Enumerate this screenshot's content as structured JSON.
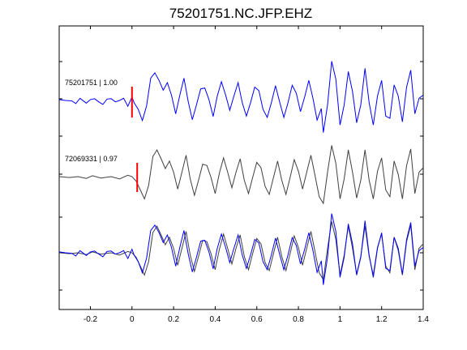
{
  "chart_data": {
    "type": "line",
    "title": "75201751.NC.JFP.EHZ",
    "xlabel": "",
    "ylabel": "",
    "xlim": [
      -0.35,
      1.4
    ],
    "x_ticks": [
      -0.2,
      0,
      0.2,
      0.4,
      0.6,
      0.8,
      1,
      1.2,
      1.4
    ],
    "x_tick_labels": [
      "-0.2",
      "0",
      "0.2",
      "0.4",
      "0.6",
      "0.8",
      "1",
      "1.2",
      "1.4"
    ],
    "grid": false,
    "pick_time": 0,
    "traces": [
      {
        "label": "75201751 | 1.00",
        "color": "#0000ff",
        "pick_x": 0.0,
        "pick_color": "#ff0000",
        "points": [
          [
            -0.35,
            0.02
          ],
          [
            -0.32,
            0.0
          ],
          [
            -0.29,
            -0.01
          ],
          [
            -0.27,
            -0.07
          ],
          [
            -0.25,
            0.05
          ],
          [
            -0.22,
            -0.06
          ],
          [
            -0.2,
            0.02
          ],
          [
            -0.18,
            0.04
          ],
          [
            -0.16,
            -0.03
          ],
          [
            -0.14,
            -0.09
          ],
          [
            -0.12,
            0.03
          ],
          [
            -0.1,
            0.04
          ],
          [
            -0.08,
            -0.03
          ],
          [
            -0.06,
            0.0
          ],
          [
            -0.04,
            0.05
          ],
          [
            -0.02,
            -0.13
          ],
          [
            0.0,
            0.08
          ],
          [
            0.01,
            -0.05
          ],
          [
            0.03,
            -0.2
          ],
          [
            0.05,
            -0.45
          ],
          [
            0.07,
            -0.12
          ],
          [
            0.09,
            0.5
          ],
          [
            0.11,
            0.62
          ],
          [
            0.13,
            0.45
          ],
          [
            0.15,
            0.23
          ],
          [
            0.17,
            0.4
          ],
          [
            0.19,
            0.12
          ],
          [
            0.21,
            -0.3
          ],
          [
            0.23,
            0.12
          ],
          [
            0.25,
            0.5
          ],
          [
            0.27,
            -0.02
          ],
          [
            0.29,
            -0.43
          ],
          [
            0.31,
            -0.1
          ],
          [
            0.33,
            0.26
          ],
          [
            0.35,
            0.28
          ],
          [
            0.37,
            0.02
          ],
          [
            0.39,
            -0.36
          ],
          [
            0.41,
            0.1
          ],
          [
            0.43,
            0.42
          ],
          [
            0.45,
            0.12
          ],
          [
            0.47,
            -0.22
          ],
          [
            0.49,
            0.1
          ],
          [
            0.51,
            0.4
          ],
          [
            0.53,
            -0.05
          ],
          [
            0.55,
            -0.35
          ],
          [
            0.57,
            -0.05
          ],
          [
            0.59,
            0.3
          ],
          [
            0.61,
            0.22
          ],
          [
            0.63,
            -0.2
          ],
          [
            0.65,
            -0.38
          ],
          [
            0.67,
            -0.05
          ],
          [
            0.69,
            0.33
          ],
          [
            0.71,
            -0.04
          ],
          [
            0.73,
            -0.38
          ],
          [
            0.75,
            -0.05
          ],
          [
            0.77,
            0.34
          ],
          [
            0.79,
            0.16
          ],
          [
            0.81,
            -0.25
          ],
          [
            0.83,
            0.08
          ],
          [
            0.85,
            0.45
          ],
          [
            0.87,
            0.05
          ],
          [
            0.89,
            -0.44
          ],
          [
            0.91,
            -0.18
          ],
          [
            0.92,
            -0.72
          ],
          [
            0.94,
            -0.1
          ],
          [
            0.96,
            0.88
          ],
          [
            0.98,
            0.48
          ],
          [
            1.0,
            -0.55
          ],
          [
            1.02,
            -0.1
          ],
          [
            1.04,
            0.65
          ],
          [
            1.06,
            0.2
          ],
          [
            1.08,
            -0.5
          ],
          [
            1.1,
            -0.1
          ],
          [
            1.12,
            0.72
          ],
          [
            1.14,
            -0.05
          ],
          [
            1.16,
            -0.55
          ],
          [
            1.18,
            0.1
          ],
          [
            1.2,
            0.45
          ],
          [
            1.22,
            -0.35
          ],
          [
            1.24,
            -0.4
          ],
          [
            1.26,
            0.35
          ],
          [
            1.28,
            0.1
          ],
          [
            1.3,
            -0.48
          ],
          [
            1.32,
            0.3
          ],
          [
            1.34,
            0.68
          ],
          [
            1.36,
            -0.3
          ],
          [
            1.38,
            0.05
          ],
          [
            1.4,
            0.12
          ]
        ]
      },
      {
        "label": "72069331 | 0.97",
        "color": "#404040",
        "pick_x": 0.025,
        "pick_color": "#ff0000",
        "points": [
          [
            -0.35,
            0.0
          ],
          [
            -0.3,
            -0.02
          ],
          [
            -0.26,
            0.0
          ],
          [
            -0.22,
            -0.04
          ],
          [
            -0.19,
            0.02
          ],
          [
            -0.15,
            -0.03
          ],
          [
            -0.1,
            0.0
          ],
          [
            -0.06,
            -0.05
          ],
          [
            -0.02,
            0.03
          ],
          [
            0.0,
            0.0
          ],
          [
            0.02,
            -0.1
          ],
          [
            0.04,
            -0.3
          ],
          [
            0.06,
            -0.5
          ],
          [
            0.08,
            -0.2
          ],
          [
            0.1,
            0.45
          ],
          [
            0.12,
            0.6
          ],
          [
            0.14,
            0.4
          ],
          [
            0.16,
            0.18
          ],
          [
            0.18,
            0.35
          ],
          [
            0.2,
            0.1
          ],
          [
            0.22,
            -0.28
          ],
          [
            0.24,
            0.1
          ],
          [
            0.26,
            0.48
          ],
          [
            0.28,
            -0.05
          ],
          [
            0.3,
            -0.42
          ],
          [
            0.32,
            -0.08
          ],
          [
            0.34,
            0.28
          ],
          [
            0.36,
            0.25
          ],
          [
            0.38,
            -0.02
          ],
          [
            0.4,
            -0.38
          ],
          [
            0.42,
            0.08
          ],
          [
            0.44,
            0.42
          ],
          [
            0.46,
            0.1
          ],
          [
            0.48,
            -0.25
          ],
          [
            0.5,
            0.1
          ],
          [
            0.52,
            0.4
          ],
          [
            0.54,
            -0.08
          ],
          [
            0.56,
            -0.38
          ],
          [
            0.58,
            -0.02
          ],
          [
            0.6,
            0.32
          ],
          [
            0.62,
            0.2
          ],
          [
            0.64,
            -0.22
          ],
          [
            0.66,
            -0.4
          ],
          [
            0.68,
            -0.02
          ],
          [
            0.7,
            0.35
          ],
          [
            0.72,
            -0.08
          ],
          [
            0.74,
            -0.4
          ],
          [
            0.76,
            -0.02
          ],
          [
            0.78,
            0.38
          ],
          [
            0.8,
            0.12
          ],
          [
            0.82,
            -0.28
          ],
          [
            0.84,
            0.1
          ],
          [
            0.86,
            0.48
          ],
          [
            0.88,
            0.02
          ],
          [
            0.9,
            -0.45
          ],
          [
            0.92,
            -0.6
          ],
          [
            0.94,
            0.1
          ],
          [
            0.96,
            0.7
          ],
          [
            0.98,
            0.3
          ],
          [
            1.0,
            -0.5
          ],
          [
            1.02,
            -0.05
          ],
          [
            1.04,
            0.6
          ],
          [
            1.06,
            0.1
          ],
          [
            1.08,
            -0.48
          ],
          [
            1.1,
            -0.08
          ],
          [
            1.12,
            0.6
          ],
          [
            1.14,
            -0.08
          ],
          [
            1.16,
            -0.5
          ],
          [
            1.18,
            0.12
          ],
          [
            1.2,
            0.42
          ],
          [
            1.22,
            -0.3
          ],
          [
            1.24,
            -0.45
          ],
          [
            1.26,
            0.35
          ],
          [
            1.28,
            0.05
          ],
          [
            1.3,
            -0.5
          ],
          [
            1.32,
            0.25
          ],
          [
            1.34,
            0.62
          ],
          [
            1.36,
            -0.38
          ],
          [
            1.38,
            0.1
          ],
          [
            1.4,
            0.2
          ]
        ]
      }
    ]
  }
}
